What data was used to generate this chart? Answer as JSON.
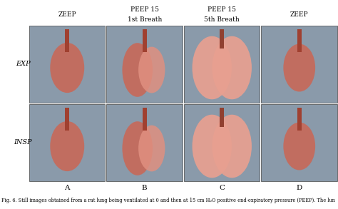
{
  "col_headers_top": [
    "ZEEP",
    "PEEP 15",
    "PEEP 15",
    "ZEEP"
  ],
  "col_headers_bot": [
    null,
    "1st Breath",
    "5th Breath",
    null
  ],
  "superscripts": [
    null,
    "st",
    "th",
    null
  ],
  "row_labels": [
    "EXP",
    "INSP"
  ],
  "col_letters": [
    "A",
    "B",
    "C",
    "D"
  ],
  "caption": "Fig. 6. Still images obtained from a rat lung being ventilated at 0 and then at 15 cm H₂O positive end-expiratory pressure (PEEP). The lun",
  "bg_color": "#ffffff",
  "cell_bg": "#8a9aaa",
  "lung_colors": [
    "#c06050",
    "#d07060",
    "#e08070",
    "#c87060"
  ],
  "grid_rows": 2,
  "grid_cols": 4,
  "fig_width": 4.74,
  "fig_height": 2.93,
  "header_fontsize": 6.5,
  "row_label_fontsize": 7.0,
  "letter_fontsize": 7.5,
  "caption_fontsize": 4.8
}
